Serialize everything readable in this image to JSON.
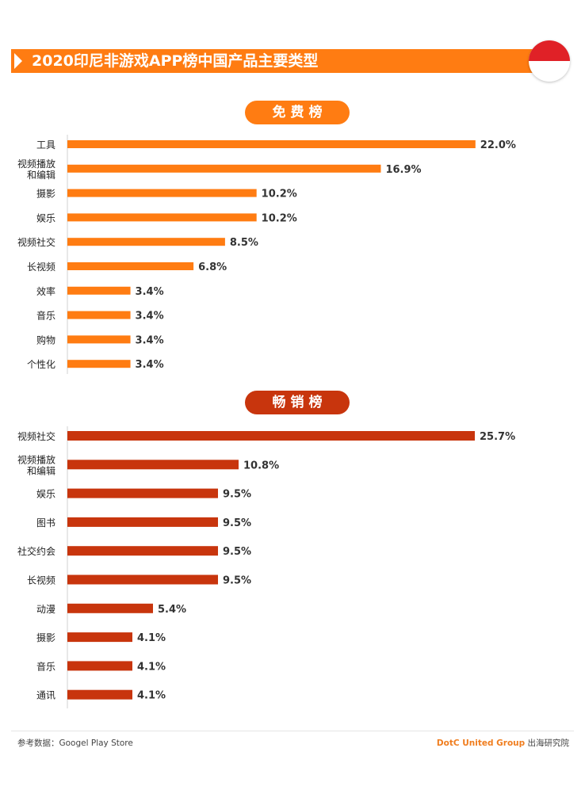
{
  "title": "2020印尼非游戏APP榜中国产品主要类型",
  "colors": {
    "free": "#ff7c12",
    "paid": "#c8350d",
    "flag_red": "#e02127"
  },
  "free_label": "免费榜",
  "paid_label": "畅销榜",
  "footer": {
    "source": "参考数据：Googel Play Store",
    "brand": "DotC United Group",
    "institute": "出海研究院"
  },
  "chart_data": [
    {
      "type": "bar",
      "orientation": "horizontal",
      "title": "免费榜",
      "unit": "%",
      "categories": [
        "工具",
        "视频播放和编辑",
        "摄影",
        "娱乐",
        "视频社交",
        "长视频",
        "效率",
        "音乐",
        "购物",
        "个性化"
      ],
      "values": [
        22.0,
        16.9,
        10.2,
        10.2,
        8.5,
        6.8,
        3.4,
        3.4,
        3.4,
        3.4
      ],
      "labels": [
        "22.0%",
        "16.9%",
        "10.2%",
        "10.2%",
        "8.5%",
        "6.8%",
        "3.4%",
        "3.4%",
        "3.4%",
        "3.4%"
      ]
    },
    {
      "type": "bar",
      "orientation": "horizontal",
      "title": "畅销榜",
      "unit": "%",
      "categories": [
        "视频社交",
        "视频播放和编辑",
        "娱乐",
        "图书",
        "社交约会",
        "长视频",
        "动漫",
        "摄影",
        "音乐",
        "通讯"
      ],
      "values": [
        25.7,
        10.8,
        9.5,
        9.5,
        9.5,
        9.5,
        5.4,
        4.1,
        4.1,
        4.1
      ],
      "labels": [
        "25.7%",
        "10.8%",
        "9.5%",
        "9.5%",
        "9.5%",
        "9.5%",
        "5.4%",
        "4.1%",
        "4.1%",
        "4.1%"
      ]
    }
  ]
}
